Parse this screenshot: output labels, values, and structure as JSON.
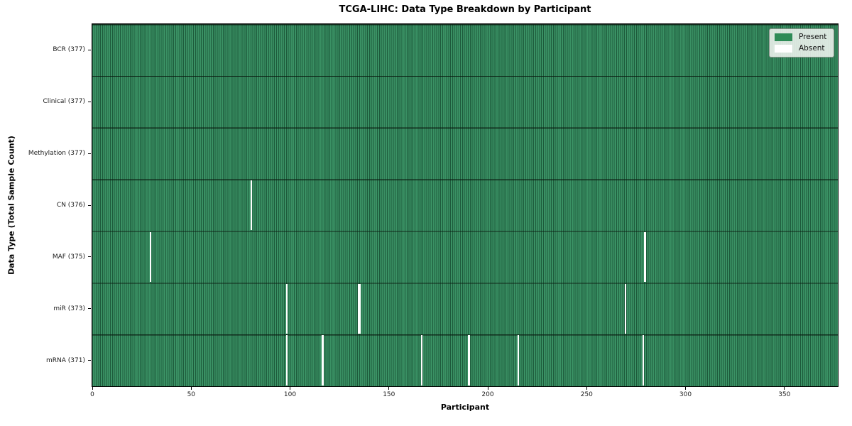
{
  "figure": {
    "title": "TCGA-LIHC: Data Type Breakdown by Participant",
    "xlabel": "Participant",
    "ylabel": "Data Type (Total Sample Count)"
  },
  "legend": {
    "items": [
      {
        "label": "Present",
        "color": "#2e8b57"
      },
      {
        "label": "Absent",
        "color": "#ffffff"
      }
    ]
  },
  "chart_data": {
    "type": "heatmap",
    "title": "TCGA-LIHC: Data Type Breakdown by Participant",
    "xlabel": "Participant",
    "ylabel": "Data Type (Total Sample Count)",
    "legend": [
      "Present",
      "Absent"
    ],
    "legend_position": "upper right",
    "grid": "cell-borders",
    "n_participants": 377,
    "x_range": [
      0,
      377
    ],
    "x_ticks": [
      0,
      50,
      100,
      150,
      200,
      250,
      300,
      350
    ],
    "value_encoding": {
      "present": 1,
      "absent": 0
    },
    "rows": [
      {
        "label": "BCR (377)",
        "data_type": "BCR",
        "total": 377,
        "absent_participants": []
      },
      {
        "label": "Clinical (377)",
        "data_type": "Clinical",
        "total": 377,
        "absent_participants": []
      },
      {
        "label": "Methylation (377)",
        "data_type": "Methylation",
        "total": 377,
        "absent_participants": []
      },
      {
        "label": "CN (376)",
        "data_type": "CN",
        "total": 376,
        "absent_participants": [
          80
        ]
      },
      {
        "label": "MAF (375)",
        "data_type": "MAF",
        "total": 375,
        "absent_participants": [
          29,
          279
        ]
      },
      {
        "label": "miR (373)",
        "data_type": "miR",
        "total": 373,
        "absent_participants": [
          98,
          134,
          135,
          269
        ]
      },
      {
        "label": "mRNA (371)",
        "data_type": "mRNA",
        "total": 371,
        "absent_participants": [
          98,
          116,
          166,
          190,
          215,
          278
        ]
      }
    ],
    "colors": {
      "present": "#2e8b57",
      "present_cell": "#3a9164",
      "cell_border": "#1d5a3b",
      "row_border": "#0a1a10",
      "absent": "#ffffff",
      "plot_border": "#000000"
    }
  }
}
